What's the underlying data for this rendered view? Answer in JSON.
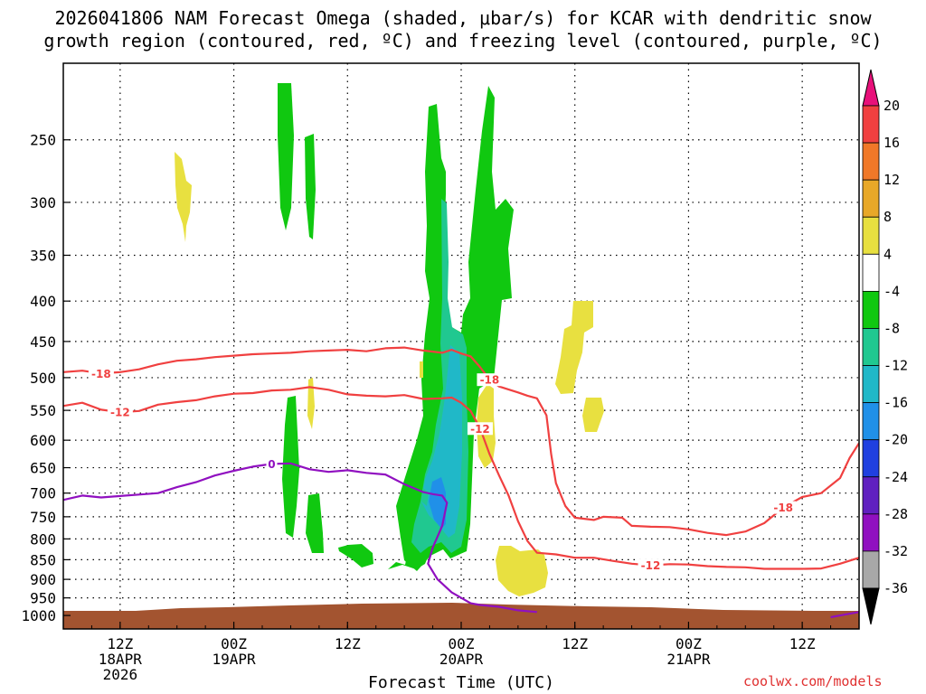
{
  "header": {
    "title_line1": "2026041806 NAM Forecast Omega (shaded, μbar/s) for KCAR with dendritic snow",
    "title_line2": "growth region (contoured, red, ºC) and freezing level (contoured, purple, ºC)"
  },
  "footer": {
    "credit": "coolwx.com/models"
  },
  "chart_data": {
    "type": "heatmap",
    "xlabel": "Forecast Time (UTC)",
    "ylabel": "",
    "x_range_hours": [
      0,
      84
    ],
    "y_range_mb": [
      200,
      1040
    ],
    "y_scale": "log",
    "grid": true,
    "y_ticks": [
      250,
      300,
      350,
      400,
      450,
      500,
      550,
      600,
      650,
      700,
      750,
      800,
      850,
      900,
      950,
      1000
    ],
    "x_ticks": [
      {
        "hour": 6,
        "lines": [
          "12Z",
          "18APR",
          "2026"
        ]
      },
      {
        "hour": 18,
        "lines": [
          "00Z",
          "19APR"
        ]
      },
      {
        "hour": 30,
        "lines": [
          "12Z"
        ]
      },
      {
        "hour": 42,
        "lines": [
          "00Z",
          "20APR"
        ]
      },
      {
        "hour": 54,
        "lines": [
          "12Z"
        ]
      },
      {
        "hour": 66,
        "lines": [
          "00Z",
          "21APR"
        ]
      },
      {
        "hour": 78,
        "lines": [
          "12Z"
        ]
      }
    ],
    "colorbar": {
      "labels": [
        "20",
        "16",
        "12",
        "8",
        "4",
        "-4",
        "-8",
        "-12",
        "-16",
        "-20",
        "-24",
        "-28",
        "-32",
        "-36"
      ],
      "colors": [
        "#e8107a",
        "#f04040",
        "#f07828",
        "#e8a828",
        "#e8e040",
        "#ffffff",
        "#10c810",
        "#20c890",
        "#20b8c8",
        "#2090e8",
        "#2040e0",
        "#6020c0",
        "#9010c0",
        "#a8a8a8",
        "#000000"
      ]
    },
    "series": [
      {
        "name": "-18",
        "color": "#f04040",
        "points": [
          [
            0,
            492
          ],
          [
            2,
            490
          ],
          [
            4,
            494
          ],
          [
            6,
            492
          ],
          [
            8,
            488
          ],
          [
            10,
            481
          ],
          [
            12,
            476
          ],
          [
            14,
            474
          ],
          [
            16,
            471
          ],
          [
            18,
            469
          ],
          [
            20,
            467
          ],
          [
            22,
            466
          ],
          [
            24,
            465
          ],
          [
            26,
            463
          ],
          [
            28,
            462
          ],
          [
            30,
            461
          ],
          [
            32,
            463
          ],
          [
            34,
            459
          ],
          [
            36,
            458
          ],
          [
            38,
            462
          ],
          [
            40,
            465
          ],
          [
            41,
            461
          ],
          [
            42,
            466
          ],
          [
            43,
            470
          ],
          [
            44,
            485
          ],
          [
            45,
            503
          ],
          [
            46,
            513
          ],
          [
            48,
            522
          ],
          [
            49,
            527
          ],
          [
            50,
            531
          ],
          [
            51,
            558
          ],
          [
            51.5,
            625
          ],
          [
            52,
            680
          ],
          [
            53,
            727
          ],
          [
            54,
            752
          ],
          [
            56,
            757
          ],
          [
            57,
            750
          ],
          [
            59,
            752
          ],
          [
            60,
            770
          ],
          [
            62,
            772
          ],
          [
            64,
            773
          ],
          [
            66,
            778
          ],
          [
            68,
            786
          ],
          [
            70,
            791
          ],
          [
            72,
            783
          ],
          [
            74,
            764
          ],
          [
            76,
            730
          ],
          [
            78,
            708
          ],
          [
            80,
            700
          ],
          [
            82,
            670
          ],
          [
            83,
            632
          ],
          [
            84,
            605
          ]
        ]
      },
      {
        "name": "-12",
        "color": "#f04040",
        "points": [
          [
            0,
            543
          ],
          [
            2,
            538
          ],
          [
            4,
            549
          ],
          [
            6,
            553
          ],
          [
            8,
            551
          ],
          [
            10,
            541
          ],
          [
            12,
            537
          ],
          [
            14,
            534
          ],
          [
            16,
            528
          ],
          [
            18,
            524
          ],
          [
            20,
            523
          ],
          [
            22,
            519
          ],
          [
            24,
            518
          ],
          [
            26,
            514
          ],
          [
            28,
            518
          ],
          [
            30,
            525
          ],
          [
            32,
            527
          ],
          [
            34,
            528
          ],
          [
            36,
            526
          ],
          [
            38,
            532
          ],
          [
            40,
            531
          ],
          [
            41,
            530
          ],
          [
            42,
            538
          ],
          [
            43,
            551
          ],
          [
            44,
            580
          ],
          [
            45,
            625
          ],
          [
            46,
            665
          ],
          [
            47,
            705
          ],
          [
            48,
            760
          ],
          [
            49,
            805
          ],
          [
            50,
            833
          ],
          [
            52,
            837
          ],
          [
            54,
            845
          ],
          [
            56,
            845
          ],
          [
            58,
            853
          ],
          [
            60,
            860
          ],
          [
            62,
            864
          ],
          [
            64,
            861
          ],
          [
            66,
            862
          ],
          [
            68,
            866
          ],
          [
            70,
            868
          ],
          [
            72,
            869
          ],
          [
            74,
            873
          ],
          [
            76,
            873
          ],
          [
            78,
            873
          ],
          [
            80,
            872
          ],
          [
            82,
            860
          ],
          [
            84,
            845
          ]
        ]
      },
      {
        "name": "0",
        "color": "#9010c0",
        "points": [
          [
            0,
            714
          ],
          [
            2,
            705
          ],
          [
            4,
            709
          ],
          [
            6,
            706
          ],
          [
            8,
            703
          ],
          [
            10,
            700
          ],
          [
            12,
            688
          ],
          [
            14,
            678
          ],
          [
            16,
            665
          ],
          [
            18,
            656
          ],
          [
            20,
            648
          ],
          [
            22,
            643
          ],
          [
            24,
            642
          ],
          [
            26,
            653
          ],
          [
            28,
            658
          ],
          [
            30,
            655
          ],
          [
            32,
            660
          ],
          [
            34,
            663
          ],
          [
            36,
            682
          ],
          [
            38,
            698
          ],
          [
            39,
            702
          ],
          [
            40,
            705
          ],
          [
            40.5,
            720
          ],
          [
            40,
            770
          ],
          [
            39,
            820
          ],
          [
            38.5,
            860
          ],
          [
            39.5,
            900
          ],
          [
            41,
            935
          ],
          [
            43,
            965
          ],
          [
            44,
            970
          ],
          [
            46,
            975
          ],
          [
            48,
            985
          ],
          [
            50,
            990
          ]
        ]
      },
      {
        "name": "0",
        "color": "#9010c0",
        "points": [
          [
            81,
            1005
          ],
          [
            82,
            1000
          ],
          [
            84,
            990
          ]
        ]
      }
    ]
  }
}
